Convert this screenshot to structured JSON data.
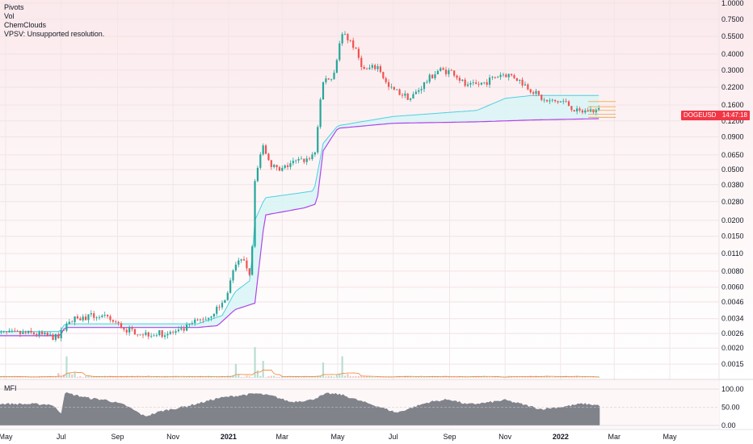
{
  "indicators": [
    "Pivots",
    "Vol",
    "ChemClouds",
    "VPSV: Unsupported resolution."
  ],
  "symbol": {
    "name": "DOGEUSD",
    "countdown": "14:47:18"
  },
  "mfi": {
    "title": "MFI",
    "levels": [
      "100.00",
      "50.00",
      "0.00"
    ]
  },
  "colors": {
    "up": "#26a69a",
    "down": "#ef5350",
    "cloud_upper": "#4dd0e1",
    "cloud_lower": "#b044e8",
    "cloud_fill": "#d8f4f6",
    "volume_up": "#b9ddd3",
    "volume_down": "#f5c3c3",
    "volume_ma": "#f0924b",
    "mfi_area": "#6b6f78",
    "badge": "#f23645"
  },
  "chart_data": {
    "type": "candlestick",
    "symbol": "DOGEUSD",
    "y_scale": "log",
    "price_ticks": [
      "1.0000",
      "0.7500",
      "0.5500",
      "0.4000",
      "0.3000",
      "0.2200",
      "0.1600",
      "0.1200",
      "0.0900",
      "0.0650",
      "0.0500",
      "0.0380",
      "0.0280",
      "0.0200",
      "0.0150",
      "0.0110",
      "0.0080",
      "0.0060",
      "0.0046",
      "0.0034",
      "0.0026",
      "0.0020",
      "0.0015"
    ],
    "time_ticks": [
      {
        "label": "May",
        "date": "2020-05-01"
      },
      {
        "label": "Jul",
        "date": "2020-07-01"
      },
      {
        "label": "Sep",
        "date": "2020-09-01"
      },
      {
        "label": "Nov",
        "date": "2020-11-01"
      },
      {
        "label": "2021",
        "date": "2021-01-01",
        "bold": true
      },
      {
        "label": "Mar",
        "date": "2021-03-01"
      },
      {
        "label": "May",
        "date": "2021-05-01"
      },
      {
        "label": "Jul",
        "date": "2021-07-01"
      },
      {
        "label": "Sep",
        "date": "2021-09-01"
      },
      {
        "label": "Nov",
        "date": "2021-11-01"
      },
      {
        "label": "2022",
        "date": "2022-01-01",
        "bold": true
      },
      {
        "label": "Mar",
        "date": "2022-03-01"
      },
      {
        "label": "May",
        "date": "2022-05-01"
      }
    ],
    "close_path": [
      [
        "2020-04-20",
        0.0026
      ],
      [
        "2020-06-01",
        0.0026
      ],
      [
        "2020-06-28",
        0.0024
      ],
      [
        "2020-07-08",
        0.0033
      ],
      [
        "2020-07-20",
        0.0034
      ],
      [
        "2020-08-10",
        0.0036
      ],
      [
        "2020-08-25",
        0.0033
      ],
      [
        "2020-09-10",
        0.0028
      ],
      [
        "2020-10-01",
        0.0026
      ],
      [
        "2020-10-25",
        0.0026
      ],
      [
        "2020-11-10",
        0.0027
      ],
      [
        "2020-11-25",
        0.0032
      ],
      [
        "2020-12-10",
        0.0035
      ],
      [
        "2020-12-28",
        0.0047
      ],
      [
        "2021-01-10",
        0.01
      ],
      [
        "2021-01-20",
        0.009
      ],
      [
        "2021-01-26",
        0.0072
      ],
      [
        "2021-01-29",
        0.04
      ],
      [
        "2021-02-08",
        0.075
      ],
      [
        "2021-02-16",
        0.056
      ],
      [
        "2021-02-26",
        0.048
      ],
      [
        "2021-03-10",
        0.056
      ],
      [
        "2021-03-28",
        0.06
      ],
      [
        "2021-04-06",
        0.068
      ],
      [
        "2021-04-14",
        0.25
      ],
      [
        "2021-04-25",
        0.26
      ],
      [
        "2021-05-01",
        0.4
      ],
      [
        "2021-05-06",
        0.6
      ],
      [
        "2021-05-16",
        0.5
      ],
      [
        "2021-05-30",
        0.3
      ],
      [
        "2021-06-15",
        0.32
      ],
      [
        "2021-06-25",
        0.22
      ],
      [
        "2021-07-20",
        0.18
      ],
      [
        "2021-08-10",
        0.26
      ],
      [
        "2021-08-20",
        0.3
      ],
      [
        "2021-09-05",
        0.29
      ],
      [
        "2021-09-20",
        0.22
      ],
      [
        "2021-10-10",
        0.24
      ],
      [
        "2021-10-28",
        0.28
      ],
      [
        "2021-11-10",
        0.27
      ],
      [
        "2021-11-30",
        0.21
      ],
      [
        "2021-12-15",
        0.17
      ],
      [
        "2022-01-05",
        0.17
      ],
      [
        "2022-01-20",
        0.14
      ],
      [
        "2022-02-01",
        0.145
      ],
      [
        "2022-02-14",
        0.145
      ]
    ],
    "cloud_upper": [
      [
        "2020-04-20",
        0.0027
      ],
      [
        "2020-06-30",
        0.0027
      ],
      [
        "2020-07-05",
        0.0031
      ],
      [
        "2020-11-28",
        0.0031
      ],
      [
        "2020-12-15",
        0.0034
      ],
      [
        "2020-12-25",
        0.0036
      ],
      [
        "2021-01-08",
        0.0055
      ],
      [
        "2021-01-25",
        0.0068
      ],
      [
        "2021-01-30",
        0.02
      ],
      [
        "2021-02-10",
        0.03
      ],
      [
        "2021-03-10",
        0.032
      ],
      [
        "2021-04-05",
        0.034
      ],
      [
        "2021-04-15",
        0.08
      ],
      [
        "2021-05-01",
        0.11
      ],
      [
        "2021-07-01",
        0.13
      ],
      [
        "2021-10-01",
        0.145
      ],
      [
        "2021-11-01",
        0.18
      ],
      [
        "2021-12-01",
        0.19
      ],
      [
        "2022-02-14",
        0.19
      ]
    ],
    "cloud_lower": [
      [
        "2020-04-20",
        0.0025
      ],
      [
        "2020-06-30",
        0.0025
      ],
      [
        "2020-07-05",
        0.0029
      ],
      [
        "2020-11-28",
        0.0029
      ],
      [
        "2020-12-20",
        0.003
      ],
      [
        "2021-01-08",
        0.004
      ],
      [
        "2021-01-30",
        0.0045
      ],
      [
        "2021-02-10",
        0.022
      ],
      [
        "2021-03-25",
        0.025
      ],
      [
        "2021-04-08",
        0.027
      ],
      [
        "2021-04-15",
        0.07
      ],
      [
        "2021-05-01",
        0.105
      ],
      [
        "2021-07-01",
        0.115
      ],
      [
        "2021-10-01",
        0.118
      ],
      [
        "2021-12-01",
        0.122
      ],
      [
        "2022-02-14",
        0.125
      ]
    ],
    "mfi_range": [
      0,
      100
    ],
    "mfi_path": [
      [
        "2020-04-20",
        60
      ],
      [
        "2020-06-20",
        58
      ],
      [
        "2020-07-01",
        35
      ],
      [
        "2020-07-05",
        90
      ],
      [
        "2020-08-01",
        75
      ],
      [
        "2020-08-20",
        70
      ],
      [
        "2020-09-10",
        55
      ],
      [
        "2020-10-01",
        25
      ],
      [
        "2020-10-20",
        40
      ],
      [
        "2020-11-10",
        50
      ],
      [
        "2020-12-01",
        62
      ],
      [
        "2020-12-20",
        75
      ],
      [
        "2021-01-10",
        82
      ],
      [
        "2021-02-01",
        88
      ],
      [
        "2021-02-20",
        80
      ],
      [
        "2021-03-10",
        65
      ],
      [
        "2021-04-01",
        70
      ],
      [
        "2021-04-20",
        88
      ],
      [
        "2021-05-05",
        85
      ],
      [
        "2021-05-25",
        68
      ],
      [
        "2021-06-15",
        52
      ],
      [
        "2021-07-05",
        35
      ],
      [
        "2021-07-20",
        48
      ],
      [
        "2021-08-10",
        65
      ],
      [
        "2021-09-01",
        72
      ],
      [
        "2021-09-20",
        58
      ],
      [
        "2021-10-10",
        62
      ],
      [
        "2021-11-01",
        70
      ],
      [
        "2021-11-25",
        55
      ],
      [
        "2021-12-10",
        45
      ],
      [
        "2022-01-05",
        52
      ],
      [
        "2022-01-25",
        60
      ],
      [
        "2022-02-14",
        55
      ]
    ],
    "volume_spikes": [
      [
        "2020-07-07",
        0.7
      ],
      [
        "2021-01-08",
        0.45
      ],
      [
        "2021-01-29",
        1.0
      ],
      [
        "2021-02-08",
        0.55
      ],
      [
        "2021-04-15",
        0.5
      ],
      [
        "2021-05-05",
        0.7
      ]
    ]
  }
}
